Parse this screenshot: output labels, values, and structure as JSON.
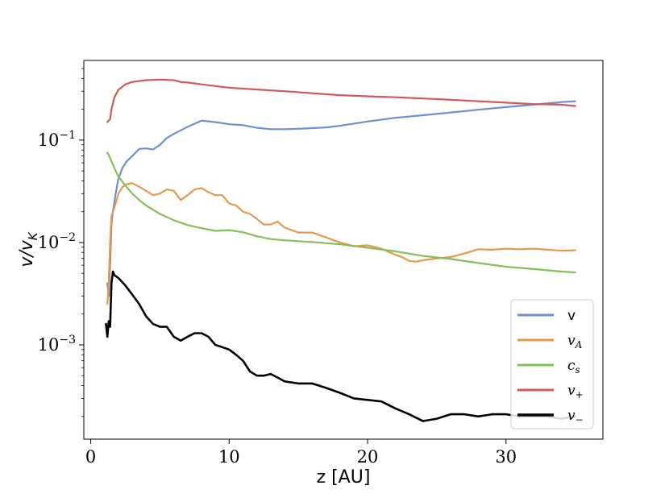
{
  "chart_data": {
    "type": "line",
    "title": "",
    "xlabel": "z [AU]",
    "ylabel": "v/v_K",
    "ylabel_parts": {
      "main": "v/v",
      "sub": "K"
    },
    "xlim": [
      -0.5,
      37
    ],
    "ylim": [
      0.00012,
      0.6
    ],
    "yscale": "log",
    "grid": false,
    "legend_position": "lower right",
    "x_ticks": [
      {
        "value": 0,
        "label": "0"
      },
      {
        "value": 10,
        "label": "10"
      },
      {
        "value": 20,
        "label": "20"
      },
      {
        "value": 30,
        "label": "30"
      }
    ],
    "y_ticks": [
      {
        "value": 0.001,
        "base": "10",
        "exp": "−3"
      },
      {
        "value": 0.01,
        "base": "10",
        "exp": "−2"
      },
      {
        "value": 0.1,
        "base": "10",
        "exp": "−1"
      }
    ],
    "series": [
      {
        "name": "v",
        "name_main": "v",
        "name_sub": "",
        "math": false,
        "color": "#6f8fd2",
        "x": [
          1.2,
          1.3,
          1.4,
          1.5,
          1.6,
          1.8,
          2.0,
          2.3,
          2.6,
          3.0,
          3.5,
          4.0,
          4.5,
          5.0,
          5.5,
          6.0,
          7.0,
          8.0,
          9.0,
          10.0,
          11.0,
          12.0,
          13.0,
          14.0,
          15.0,
          16.0,
          17.0,
          18.0,
          20.0,
          22.0,
          24.0,
          26.0,
          28.0,
          30.0,
          32.0,
          34.0,
          35.0
        ],
        "y": [
          0.004,
          0.003,
          0.006,
          0.015,
          0.02,
          0.03,
          0.042,
          0.054,
          0.062,
          0.07,
          0.082,
          0.083,
          0.081,
          0.09,
          0.105,
          0.115,
          0.135,
          0.155,
          0.15,
          0.143,
          0.14,
          0.132,
          0.128,
          0.128,
          0.129,
          0.131,
          0.133,
          0.138,
          0.152,
          0.165,
          0.175,
          0.186,
          0.198,
          0.21,
          0.222,
          0.235,
          0.24
        ]
      },
      {
        "name": "v_A",
        "name_main": "v",
        "name_sub": "A",
        "math": true,
        "color": "#e49a4b",
        "x": [
          1.2,
          1.3,
          1.4,
          1.5,
          1.6,
          1.8,
          2.0,
          2.3,
          2.6,
          3.0,
          3.5,
          4.0,
          4.5,
          5.0,
          5.5,
          6.0,
          6.5,
          7.0,
          7.5,
          8.0,
          8.5,
          9.0,
          9.5,
          10.0,
          10.5,
          11.0,
          11.5,
          12.0,
          12.5,
          13.0,
          13.5,
          14.0,
          15.0,
          16.0,
          17.0,
          18.0,
          19.0,
          20.0,
          21.0,
          22.0,
          22.5,
          23.0,
          23.5,
          24.0,
          25.0,
          26.0,
          27.0,
          28.0,
          29.0,
          30.0,
          31.0,
          32.0,
          33.0,
          34.0,
          35.0
        ],
        "y": [
          0.0025,
          0.004,
          0.01,
          0.018,
          0.02,
          0.024,
          0.03,
          0.035,
          0.037,
          0.038,
          0.035,
          0.032,
          0.029,
          0.03,
          0.033,
          0.032,
          0.026,
          0.029,
          0.033,
          0.034,
          0.031,
          0.029,
          0.029,
          0.024,
          0.023,
          0.02,
          0.019,
          0.017,
          0.015,
          0.015,
          0.016,
          0.014,
          0.0125,
          0.0125,
          0.0112,
          0.01,
          0.0092,
          0.0094,
          0.0087,
          0.0076,
          0.0072,
          0.0066,
          0.0065,
          0.0067,
          0.007,
          0.0072,
          0.0078,
          0.0086,
          0.0085,
          0.0087,
          0.0086,
          0.0087,
          0.0085,
          0.0083,
          0.0084
        ]
      },
      {
        "name": "c_s",
        "name_main": "c",
        "name_sub": "s",
        "math": true,
        "color": "#86bf5a",
        "x": [
          1.2,
          1.3,
          1.5,
          1.8,
          2.0,
          2.5,
          3.0,
          3.5,
          4.0,
          5.0,
          6.0,
          7.0,
          8.0,
          9.0,
          10.0,
          11.0,
          12.0,
          13.0,
          14.0,
          16.0,
          18.0,
          20.0,
          22.0,
          24.0,
          26.0,
          28.0,
          30.0,
          32.0,
          34.0,
          35.0
        ],
        "y": [
          0.075,
          0.072,
          0.062,
          0.05,
          0.044,
          0.036,
          0.03,
          0.026,
          0.023,
          0.019,
          0.0165,
          0.0148,
          0.0138,
          0.013,
          0.0132,
          0.0126,
          0.0115,
          0.0108,
          0.0105,
          0.0101,
          0.0096,
          0.0089,
          0.0082,
          0.0074,
          0.0069,
          0.0063,
          0.0058,
          0.0055,
          0.0052,
          0.0051
        ]
      },
      {
        "name": "v_+",
        "name_main": "v",
        "name_sub": "+",
        "math": true,
        "color": "#d05a5a",
        "x": [
          1.2,
          1.4,
          1.5,
          1.7,
          2.0,
          2.5,
          3.0,
          4.0,
          5.0,
          6.0,
          6.5,
          7.0,
          8.0,
          9.0,
          10.0,
          12.0,
          14.0,
          16.0,
          18.0,
          20.0,
          22.0,
          24.0,
          26.0,
          28.0,
          30.0,
          32.0,
          34.0,
          35.0
        ],
        "y": [
          0.15,
          0.16,
          0.2,
          0.26,
          0.31,
          0.35,
          0.37,
          0.385,
          0.39,
          0.385,
          0.37,
          0.365,
          0.35,
          0.337,
          0.325,
          0.312,
          0.3,
          0.287,
          0.275,
          0.268,
          0.262,
          0.255,
          0.248,
          0.24,
          0.232,
          0.225,
          0.222,
          0.215
        ]
      },
      {
        "name": "v_-",
        "name_main": "v",
        "name_sub": "−",
        "math": true,
        "color": "#000000",
        "x": [
          1.1,
          1.2,
          1.3,
          1.4,
          1.5,
          1.6,
          1.7,
          2.0,
          2.5,
          3.0,
          3.5,
          4.0,
          4.5,
          5.0,
          5.5,
          6.0,
          6.5,
          7.0,
          7.5,
          8.0,
          8.5,
          9.0,
          9.5,
          10.0,
          10.5,
          11.0,
          11.5,
          12.0,
          12.5,
          13.0,
          13.5,
          14.0,
          15.0,
          16.0,
          17.0,
          18.0,
          19.0,
          20.0,
          21.0,
          22.0,
          23.0,
          24.0,
          25.0,
          26.0,
          27.0,
          28.0,
          29.0,
          30.0,
          31.0,
          32.0,
          33.0,
          34.0,
          35.0
        ],
        "y": [
          0.0016,
          0.0012,
          0.0017,
          0.0015,
          0.004,
          0.0052,
          0.0048,
          0.0045,
          0.0038,
          0.0031,
          0.0025,
          0.0019,
          0.0016,
          0.0015,
          0.0015,
          0.0012,
          0.0011,
          0.0012,
          0.0013,
          0.0013,
          0.0012,
          0.001,
          0.00095,
          0.0009,
          0.0008,
          0.0007,
          0.00055,
          0.0005,
          0.0005,
          0.00052,
          0.00048,
          0.00044,
          0.00042,
          0.00042,
          0.00038,
          0.00034,
          0.0003,
          0.00029,
          0.00028,
          0.00024,
          0.00021,
          0.00018,
          0.00019,
          0.00021,
          0.00021,
          0.0002,
          0.00021,
          0.00021,
          0.0002,
          0.0002,
          0.0002,
          0.00019,
          0.0002
        ]
      }
    ]
  }
}
